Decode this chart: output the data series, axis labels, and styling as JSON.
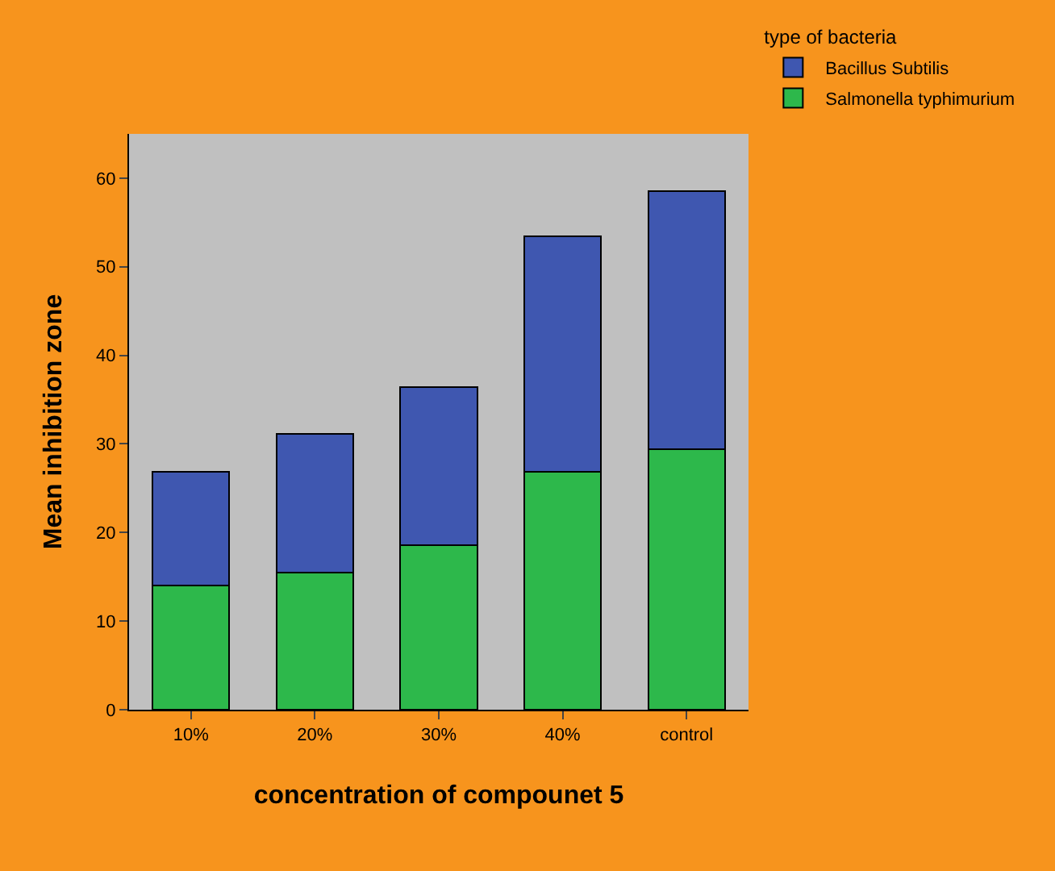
{
  "chart_data": {
    "type": "bar",
    "stacked": true,
    "xlabel": "concentration of compounet 5",
    "ylabel": "Mean inhibition zone",
    "legend_title": "type of bacteria",
    "legend": "top right",
    "categories": [
      "10%",
      "20%",
      "30%",
      "40%",
      "control"
    ],
    "series": [
      {
        "name": "Salmonella typhimurium",
        "color": "#2db84b",
        "values": [
          14,
          15.5,
          18.6,
          26.9,
          29.4
        ]
      },
      {
        "name": "Bacillus Subtilis",
        "color": "#3f57b0",
        "values": [
          12.9,
          15.6,
          17.8,
          26.5,
          29.1
        ]
      }
    ],
    "ylim": [
      0,
      65
    ],
    "yticks": [
      0,
      10,
      20,
      30,
      40,
      50,
      60
    ],
    "grid": false
  }
}
